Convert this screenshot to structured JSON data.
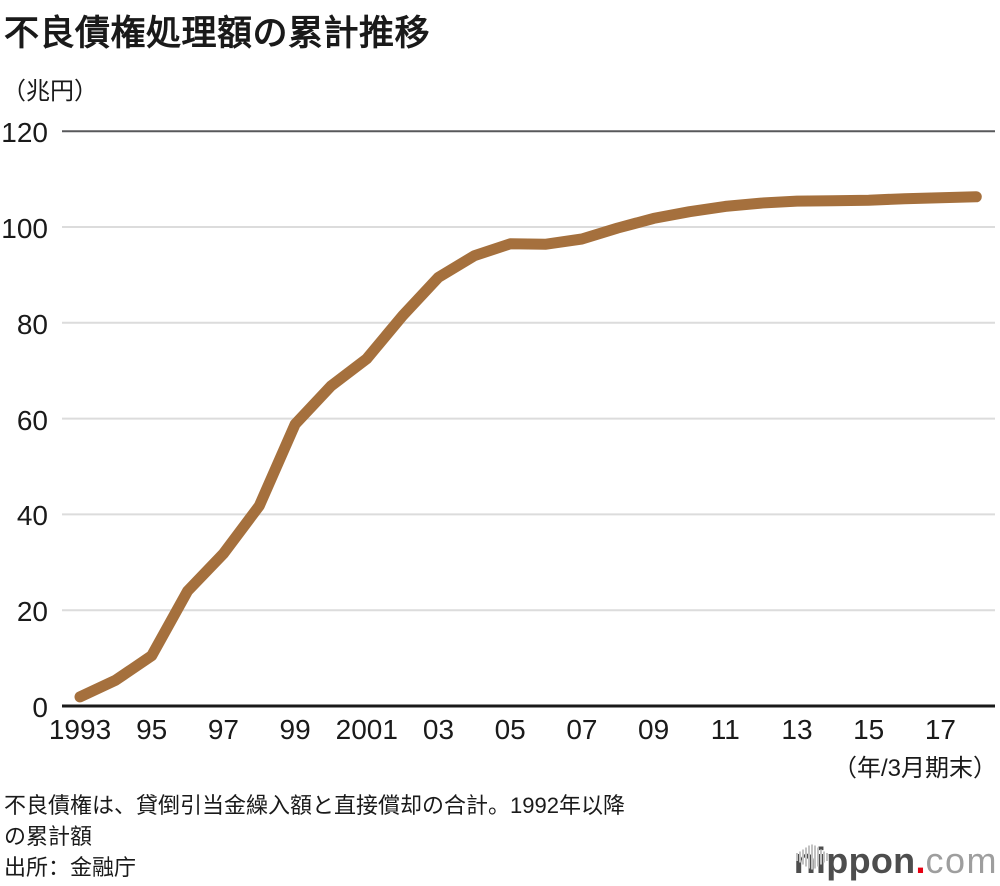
{
  "header": {
    "title": "不良債権処理額の累計推移"
  },
  "chart_data": {
    "type": "line",
    "title": "不良債権処理額の累計推移",
    "unit_label": "（兆円）",
    "xlabel_note": "（年/3月期末）",
    "ylabel": "兆円",
    "ylim": [
      0,
      120
    ],
    "yticks": [
      0,
      20,
      40,
      60,
      80,
      100,
      120
    ],
    "xtick_labels": [
      "1993",
      "95",
      "97",
      "99",
      "2001",
      "03",
      "05",
      "07",
      "09",
      "11",
      "13",
      "15",
      "17"
    ],
    "xtick_years": [
      1993,
      1995,
      1997,
      1999,
      2001,
      2003,
      2005,
      2007,
      2009,
      2011,
      2013,
      2015,
      2017
    ],
    "x": [
      1993,
      1994,
      1995,
      1996,
      1997,
      1998,
      1999,
      2000,
      2001,
      2002,
      2003,
      2004,
      2005,
      2006,
      2007,
      2008,
      2009,
      2010,
      2011,
      2012,
      2013,
      2014,
      2015,
      2016,
      2017,
      2018
    ],
    "values": [
      1.9,
      5.4,
      10.5,
      24.0,
      31.8,
      41.8,
      58.8,
      66.8,
      72.5,
      81.5,
      89.5,
      94.0,
      96.5,
      96.4,
      97.5,
      99.8,
      101.8,
      103.2,
      104.3,
      105.0,
      105.4,
      105.5,
      105.6,
      105.9,
      106.1,
      106.3
    ],
    "series_name": "不良債権処理額の累計",
    "grid": "horizontal",
    "legend": false,
    "line_color": "#a5703d"
  },
  "footnote": {
    "line1": "不良債権は、貸倒引当金繰入額と直接償却の合計。1992年以降",
    "line2": "の累計額",
    "source": "出所：金融庁"
  },
  "logo": {
    "brand": "nippon",
    "dot": ".",
    "tld": "com",
    "icon": "sound-wave-bars-icon"
  },
  "colors": {
    "line": "#a5703d",
    "grid": "#dcdcdc",
    "top_gridline": "#58595b",
    "axis": "#1a1a1a",
    "text": "#1a1a1a",
    "logo_dark": "#4d4d4d",
    "logo_light": "#9e9e9e",
    "logo_dot": "#e60012"
  }
}
